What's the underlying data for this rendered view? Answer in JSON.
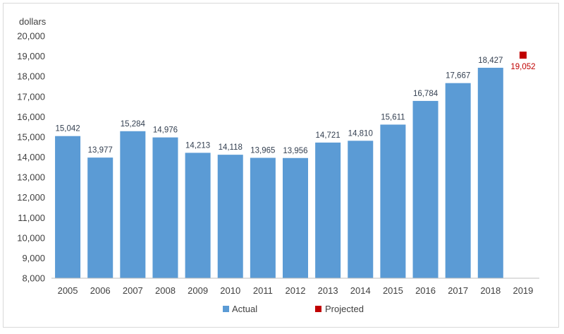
{
  "chart_data": {
    "type": "bar",
    "ylabel": "dollars",
    "ylim": [
      8000,
      20000
    ],
    "ytick_step": 1000,
    "categories": [
      "2005",
      "2006",
      "2007",
      "2008",
      "2009",
      "2010",
      "2011",
      "2012",
      "2013",
      "2014",
      "2015",
      "2016",
      "2017",
      "2018",
      "2019"
    ],
    "series": [
      {
        "name": "Actual",
        "kind": "bar",
        "color": "#5b9bd5",
        "values": [
          15042,
          13977,
          15284,
          14976,
          14213,
          14118,
          13965,
          13956,
          14721,
          14810,
          15611,
          16784,
          17667,
          18427,
          null
        ],
        "labels": [
          "15,042",
          "13,977",
          "15,284",
          "14,976",
          "14,213",
          "14,118",
          "13,965",
          "13,956",
          "14,721",
          "14,810",
          "15,611",
          "16,784",
          "17,667",
          "18,427",
          ""
        ]
      },
      {
        "name": "Projected",
        "kind": "marker",
        "color": "#c00000",
        "values": [
          null,
          null,
          null,
          null,
          null,
          null,
          null,
          null,
          null,
          null,
          null,
          null,
          null,
          null,
          19052
        ],
        "labels": [
          "",
          "",
          "",
          "",
          "",
          "",
          "",
          "",
          "",
          "",
          "",
          "",
          "",
          "",
          "19,052"
        ]
      }
    ],
    "legend_position": "bottom",
    "grid": false
  }
}
